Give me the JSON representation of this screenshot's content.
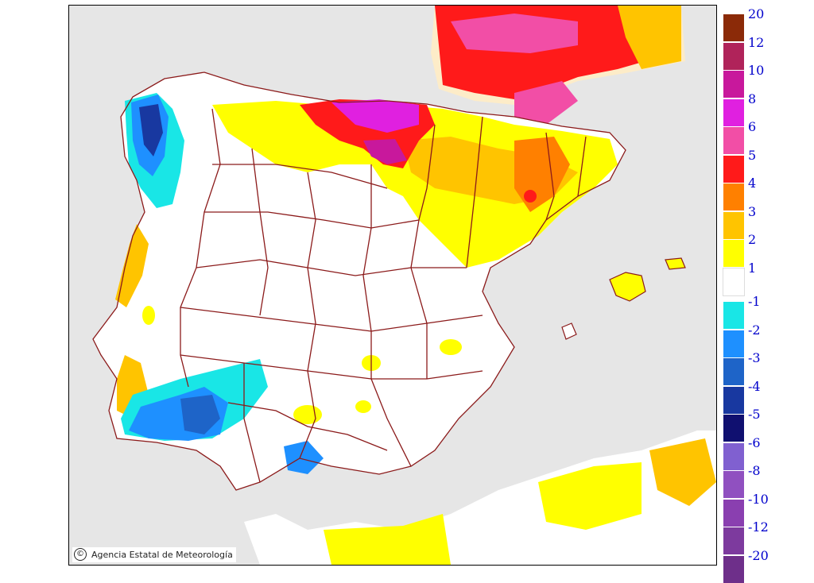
{
  "map": {
    "credit": "Agencia Estatal de Meteorología",
    "credit_symbol": "©",
    "logo": "aemet",
    "colors": {
      "background_sea": "#e6e6e6",
      "land": "#ffffff",
      "border_line": "#8b1a1a",
      "france_land": "#fdecc8"
    }
  },
  "legend": {
    "positive": [
      {
        "label": "20",
        "color": "#8b2a08"
      },
      {
        "label": "12",
        "color": "#b0235a"
      },
      {
        "label": "10",
        "color": "#c8189c"
      },
      {
        "label": "8",
        "color": "#e020e0"
      },
      {
        "label": "6",
        "color": "#f24ea6"
      },
      {
        "label": "5",
        "color": "#ff1a1a"
      },
      {
        "label": "4",
        "color": "#ff8000"
      },
      {
        "label": "3",
        "color": "#ffc400"
      },
      {
        "label": "2",
        "color": "#ffff00"
      },
      {
        "label": "1",
        "color": "#ffffff"
      }
    ],
    "negative": [
      {
        "label": "-1",
        "color": "#19e6e6"
      },
      {
        "label": "-2",
        "color": "#1e90ff"
      },
      {
        "label": "-3",
        "color": "#1e64c8"
      },
      {
        "label": "-4",
        "color": "#1838a0"
      },
      {
        "label": "-5",
        "color": "#101070"
      },
      {
        "label": "-6",
        "color": "#8060d0"
      },
      {
        "label": "-8",
        "color": "#9050c0"
      },
      {
        "label": "-10",
        "color": "#8a3fb0"
      },
      {
        "label": "-12",
        "color": "#7d3a9e"
      },
      {
        "label": "-20",
        "color": "#6e2f8a"
      }
    ]
  }
}
